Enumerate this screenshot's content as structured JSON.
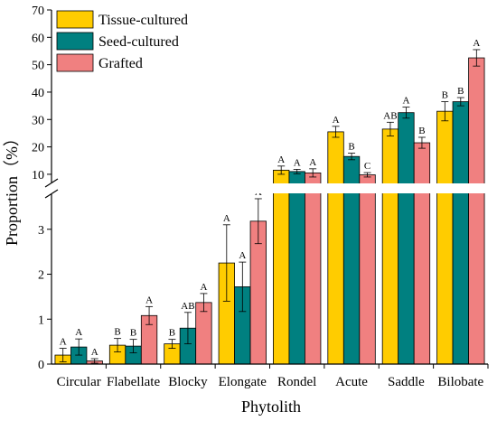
{
  "chart_data": {
    "type": "bar",
    "title": "",
    "xlabel": "Phytolith",
    "ylabel": "Proportion（%）",
    "axis_break": {
      "lower_max": 3.8,
      "upper_min": 7
    },
    "ylim": [
      0,
      70
    ],
    "lower_ticks": [
      0,
      1,
      2,
      3
    ],
    "upper_ticks": [
      10,
      20,
      30,
      40,
      50,
      60,
      70
    ],
    "grid": false,
    "legend_position": "top-left",
    "categories": [
      "Circular",
      "Flabellate",
      "Blocky",
      "Elongate",
      "Rondel",
      "Acute",
      "Saddle",
      "Bilobate"
    ],
    "series": [
      {
        "name": "Tissue-cultured",
        "color": "#FFCC00",
        "values": [
          0.2,
          0.42,
          0.45,
          2.25,
          11.5,
          25.5,
          26.5,
          33
        ],
        "errors": [
          0.15,
          0.15,
          0.1,
          0.85,
          1.5,
          2,
          2.5,
          3.5
        ],
        "letters": [
          "A",
          "B",
          "B",
          "A",
          "A",
          "A",
          "AB",
          "B"
        ]
      },
      {
        "name": "Seed-cultured",
        "color": "#008080",
        "values": [
          0.38,
          0.4,
          0.8,
          1.72,
          11,
          16.5,
          32.5,
          36.5
        ],
        "errors": [
          0.18,
          0.15,
          0.35,
          0.55,
          0.8,
          1.2,
          2,
          1.5
        ],
        "letters": [
          "A",
          "B",
          "AB",
          "A",
          "A",
          "B",
          "A",
          "B"
        ]
      },
      {
        "name": "Grafted",
        "color": "#F08080",
        "values": [
          0.07,
          1.08,
          1.37,
          3.18,
          10.5,
          9.8,
          21.5,
          52.5
        ],
        "errors": [
          0.05,
          0.2,
          0.2,
          0.5,
          1.5,
          0.8,
          2,
          3
        ],
        "letters": [
          "A",
          "A",
          "A",
          "A",
          "A",
          "C",
          "B",
          "A"
        ]
      }
    ]
  }
}
